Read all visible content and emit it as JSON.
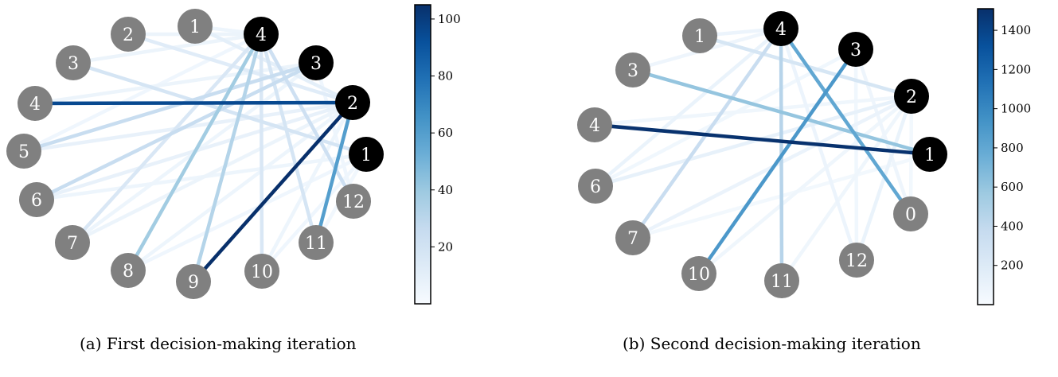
{
  "panels": [
    {
      "id": "a",
      "caption": "(a) First decision-making iteration",
      "colorbar": {
        "min": 0,
        "max": 105,
        "ticks": [
          20,
          40,
          60,
          80,
          100
        ]
      },
      "nodes": [
        {
          "id": "n1",
          "label": "1",
          "selected": false
        },
        {
          "id": "n2",
          "label": "2",
          "selected": false
        },
        {
          "id": "n3",
          "label": "3",
          "selected": false
        },
        {
          "id": "n4",
          "label": "4",
          "selected": false
        },
        {
          "id": "n5",
          "label": "5",
          "selected": false
        },
        {
          "id": "n6",
          "label": "6",
          "selected": false
        },
        {
          "id": "n7",
          "label": "7",
          "selected": false
        },
        {
          "id": "n8",
          "label": "8",
          "selected": false
        },
        {
          "id": "n9",
          "label": "9",
          "selected": false
        },
        {
          "id": "n10",
          "label": "10",
          "selected": false
        },
        {
          "id": "n11",
          "label": "11",
          "selected": false
        },
        {
          "id": "n12",
          "label": "12",
          "selected": false
        },
        {
          "id": "s1",
          "label": "1",
          "selected": true
        },
        {
          "id": "s2",
          "label": "2",
          "selected": true
        },
        {
          "id": "s3",
          "label": "3",
          "selected": true
        },
        {
          "id": "s4",
          "label": "4",
          "selected": true
        }
      ],
      "edges": [
        {
          "from": "n4",
          "to": "s2",
          "weight": 95
        },
        {
          "from": "n9",
          "to": "s2",
          "weight": 105
        },
        {
          "from": "n11",
          "to": "s2",
          "weight": 60
        },
        {
          "from": "n8",
          "to": "s4",
          "weight": 38
        },
        {
          "from": "n9",
          "to": "s4",
          "weight": 32
        },
        {
          "from": "n5",
          "to": "s3",
          "weight": 25
        },
        {
          "from": "n6",
          "to": "s3",
          "weight": 25
        },
        {
          "from": "n10",
          "to": "s4",
          "weight": 16
        },
        {
          "from": "n7",
          "to": "s4",
          "weight": 16
        },
        {
          "from": "n12",
          "to": "s4",
          "weight": 22
        },
        {
          "from": "n11",
          "to": "s4",
          "weight": 18
        },
        {
          "from": "n3",
          "to": "s1",
          "weight": 18
        },
        {
          "from": "n2",
          "to": "s2",
          "weight": 12
        },
        {
          "from": "n1",
          "to": "s2",
          "weight": 10
        },
        {
          "from": "n5",
          "to": "s2",
          "weight": 8
        },
        {
          "from": "n6",
          "to": "s2",
          "weight": 8
        },
        {
          "from": "n7",
          "to": "s2",
          "weight": 6
        },
        {
          "from": "n3",
          "to": "s4",
          "weight": 6
        },
        {
          "from": "n4",
          "to": "s3",
          "weight": 6
        },
        {
          "from": "n2",
          "to": "s4",
          "weight": 6
        },
        {
          "from": "n1",
          "to": "s4",
          "weight": 5
        },
        {
          "from": "n8",
          "to": "s2",
          "weight": 5
        },
        {
          "from": "n10",
          "to": "s2",
          "weight": 5
        },
        {
          "from": "n6",
          "to": "s1",
          "weight": 5
        },
        {
          "from": "n7",
          "to": "s3",
          "weight": 5
        },
        {
          "from": "n8",
          "to": "s1",
          "weight": 4
        },
        {
          "from": "n12",
          "to": "s3",
          "weight": 4
        },
        {
          "from": "n5",
          "to": "s4",
          "weight": 4
        },
        {
          "from": "n10",
          "to": "s1",
          "weight": 4
        },
        {
          "from": "n11",
          "to": "s1",
          "weight": 3
        }
      ]
    },
    {
      "id": "b",
      "caption": "(b) Second decision-making iteration",
      "colorbar": {
        "min": 0,
        "max": 1510,
        "ticks": [
          200,
          400,
          600,
          800,
          1000,
          1200,
          1400
        ]
      },
      "nodes": [
        {
          "id": "m1",
          "label": "1",
          "selected": false
        },
        {
          "id": "m3",
          "label": "3",
          "selected": false
        },
        {
          "id": "m4",
          "label": "4",
          "selected": false
        },
        {
          "id": "m6",
          "label": "6",
          "selected": false
        },
        {
          "id": "m7",
          "label": "7",
          "selected": false
        },
        {
          "id": "m10",
          "label": "10",
          "selected": false
        },
        {
          "id": "m11",
          "label": "11",
          "selected": false
        },
        {
          "id": "m12",
          "label": "12",
          "selected": false
        },
        {
          "id": "m0",
          "label": "0",
          "selected": false
        },
        {
          "id": "t1",
          "label": "1",
          "selected": true
        },
        {
          "id": "t2",
          "label": "2",
          "selected": true
        },
        {
          "id": "t3",
          "label": "3",
          "selected": true
        },
        {
          "id": "t4",
          "label": "4",
          "selected": true
        }
      ],
      "edges": [
        {
          "from": "m4",
          "to": "t1",
          "weight": 1500
        },
        {
          "from": "m10",
          "to": "t3",
          "weight": 900
        },
        {
          "from": "t4",
          "to": "m0",
          "weight": 800
        },
        {
          "from": "m3",
          "to": "t1",
          "weight": 600
        },
        {
          "from": "m11",
          "to": "t4",
          "weight": 450
        },
        {
          "from": "m7",
          "to": "t4",
          "weight": 350
        },
        {
          "from": "m1",
          "to": "t2",
          "weight": 250
        },
        {
          "from": "m6",
          "to": "t2",
          "weight": 120
        },
        {
          "from": "m6",
          "to": "t4",
          "weight": 100
        },
        {
          "from": "m7",
          "to": "t2",
          "weight": 90
        },
        {
          "from": "m12",
          "to": "t2",
          "weight": 100
        },
        {
          "from": "m12",
          "to": "t4",
          "weight": 80
        },
        {
          "from": "m0",
          "to": "t3",
          "weight": 70
        },
        {
          "from": "m11",
          "to": "t2",
          "weight": 60
        },
        {
          "from": "m1",
          "to": "t4",
          "weight": 80
        },
        {
          "from": "m3",
          "to": "t4",
          "weight": 70
        },
        {
          "from": "m4",
          "to": "t2",
          "weight": 60
        },
        {
          "from": "m10",
          "to": "t2",
          "weight": 60
        },
        {
          "from": "m6",
          "to": "t3",
          "weight": 50
        },
        {
          "from": "m12",
          "to": "t3",
          "weight": 50
        },
        {
          "from": "m7",
          "to": "t1",
          "weight": 40
        },
        {
          "from": "m0",
          "to": "t2",
          "weight": 40
        }
      ]
    }
  ]
}
